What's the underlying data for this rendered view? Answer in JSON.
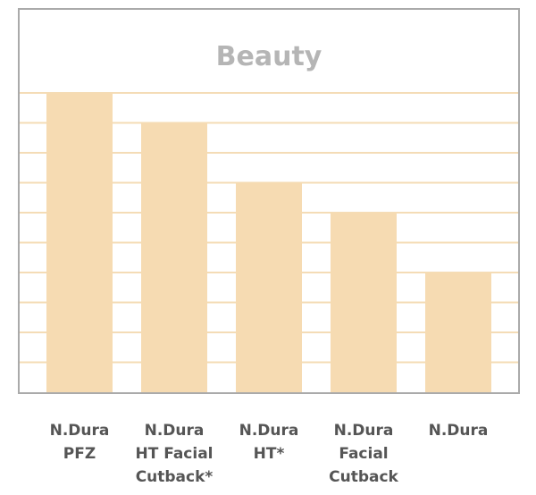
{
  "chart_data": {
    "type": "bar",
    "title": "Beauty",
    "categories": [
      [
        "N.Dura",
        "PFZ"
      ],
      [
        "N.Dura",
        "HT Facial",
        "Cutback*"
      ],
      [
        "N.Dura",
        "HT*"
      ],
      [
        "N.Dura",
        "Facial",
        "Cutback"
      ],
      [
        "N.Dura"
      ]
    ],
    "values": [
      10,
      9,
      7,
      6,
      4
    ],
    "ylim": [
      0,
      10
    ],
    "grid": true,
    "y_tick_labels_shown": false,
    "colors": {
      "bar": "#f6dbb2",
      "grid": "#f4dcb6",
      "frame": "#aaaaaa",
      "title": "#b5b5b5",
      "label": "#555555"
    }
  }
}
